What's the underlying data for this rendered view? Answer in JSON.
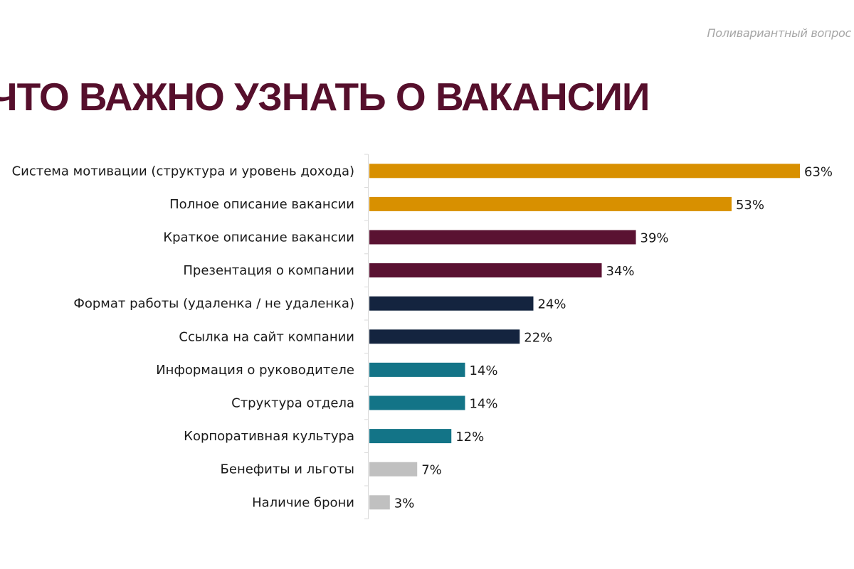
{
  "header": {
    "subtitle": "Поливариантный вопрос",
    "title": "ЧТО ВАЖНО УЗНАТЬ О ВАКАНСИИ"
  },
  "chart_data": {
    "type": "bar",
    "orientation": "horizontal",
    "title": "ЧТО ВАЖНО УЗНАТЬ О ВАКАНСИИ",
    "xlabel": "",
    "ylabel": "",
    "unit": "%",
    "grid": false,
    "categories": [
      "Система мотивации (структура и уровень дохода)",
      "Полное описание вакансии",
      "Краткое описание вакансии",
      "Презентация о компании",
      "Формат работы (удаленка / не удаленка)",
      "Ссылка на сайт компании",
      "Информация о руководителе",
      "Структура отдела",
      "Корпоративная культура",
      "Бенефиты и льготы",
      "Наличие брони"
    ],
    "values": [
      63,
      53,
      39,
      34,
      24,
      22,
      14,
      14,
      12,
      7,
      3
    ],
    "data_labels": [
      "63%",
      "53%",
      "39%",
      "34%",
      "24%",
      "22%",
      "14%",
      "14%",
      "12%",
      "7%",
      "3%"
    ],
    "colors": [
      "#d89000",
      "#d89000",
      "#5a1232",
      "#5a1232",
      "#14243f",
      "#14243f",
      "#137487",
      "#137487",
      "#137487",
      "#c0c0c0",
      "#c0c0c0"
    ],
    "xlim": [
      0,
      63
    ]
  }
}
